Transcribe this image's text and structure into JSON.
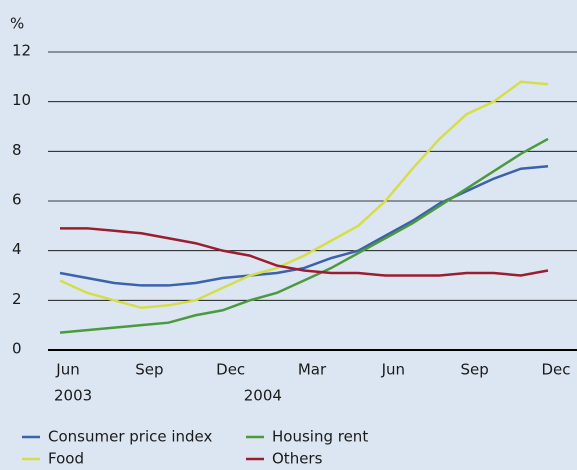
{
  "chart_data": {
    "type": "line",
    "y_unit_label": "%",
    "categories": [
      "Jun",
      null,
      null,
      "Sep",
      null,
      null,
      "Dec",
      null,
      null,
      "Mar",
      null,
      null,
      "Jun",
      null,
      null,
      "Sep",
      null,
      null,
      "Dec"
    ],
    "x_year_labels": [
      "2003",
      "2004"
    ],
    "ylim": [
      0,
      12
    ],
    "yticks": [
      0,
      2,
      4,
      6,
      8,
      10,
      12
    ],
    "grid": true,
    "series": [
      {
        "name": "Consumer price index",
        "color": "#3b62ab",
        "values": [
          3.1,
          2.9,
          2.7,
          2.6,
          2.6,
          2.7,
          2.9,
          3.0,
          3.1,
          3.3,
          3.7,
          4.0,
          4.6,
          5.2,
          5.9,
          6.4,
          6.9,
          7.3,
          7.4
        ]
      },
      {
        "name": "Housing rent",
        "color": "#4b9a3d",
        "values": [
          0.7,
          0.8,
          0.9,
          1.0,
          1.1,
          1.4,
          1.6,
          2.0,
          2.3,
          2.8,
          3.3,
          3.9,
          4.5,
          5.1,
          5.8,
          6.5,
          7.2,
          7.9,
          8.5
        ]
      },
      {
        "name": "Food",
        "color": "#d5de48",
        "values": [
          2.8,
          2.3,
          2.0,
          1.7,
          1.8,
          2.0,
          2.5,
          3.0,
          3.3,
          3.8,
          4.4,
          5.0,
          6.0,
          7.3,
          8.5,
          9.5,
          10.0,
          10.8,
          10.7
        ]
      },
      {
        "name": "Others",
        "color": "#9b1d2f",
        "values": [
          4.9,
          4.9,
          4.8,
          4.7,
          4.5,
          4.3,
          4.0,
          3.8,
          3.4,
          3.2,
          3.1,
          3.1,
          3.0,
          3.0,
          3.0,
          3.1,
          3.1,
          3.0,
          3.2
        ]
      }
    ]
  }
}
